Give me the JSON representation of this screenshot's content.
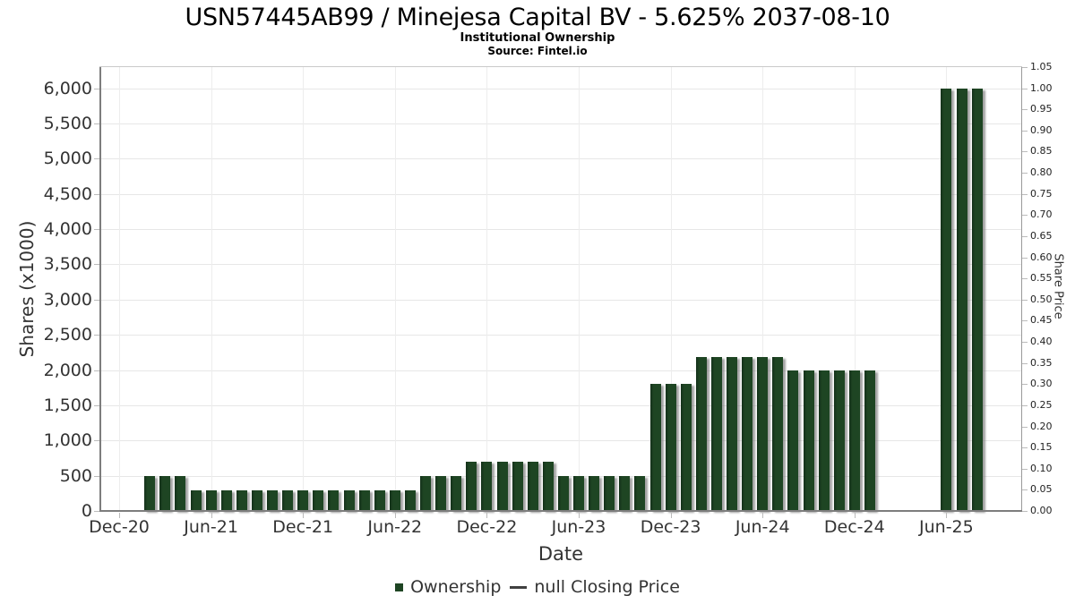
{
  "header": {
    "title": "USN57445AB99 / Minejesa Capital BV - 5.625% 2037-08-10",
    "subtitle": "Institutional Ownership",
    "source": "Source: Fintel.io"
  },
  "chart_data": {
    "type": "bar",
    "title": "USN57445AB99 / Minejesa Capital BV - 5.625% 2037-08-10",
    "subtitle": "Institutional Ownership",
    "source": "Source: Fintel.io",
    "xlabel": "Date",
    "ylabel_left": "Shares (x1000)",
    "ylabel_right": "Share Price",
    "grid": true,
    "legend_position": "bottom",
    "x_major_ticks": [
      "Dec-20",
      "Jun-21",
      "Dec-21",
      "Jun-22",
      "Dec-22",
      "Jun-23",
      "Dec-23",
      "Jun-24",
      "Dec-24",
      "Jun-25"
    ],
    "yticks_left": [
      0,
      500,
      1000,
      1500,
      2000,
      2500,
      3000,
      3500,
      4000,
      4500,
      5000,
      5500,
      6000
    ],
    "ylim_left": [
      0,
      6300
    ],
    "yticks_right": [
      0.0,
      0.05,
      0.1,
      0.15,
      0.2,
      0.25,
      0.3,
      0.35,
      0.4,
      0.45,
      0.5,
      0.55,
      0.6,
      0.65,
      0.7,
      0.75,
      0.8,
      0.85,
      0.9,
      0.95,
      1.0,
      1.05
    ],
    "ylim_right": [
      0,
      1.05
    ],
    "bar_color": "#1e4523",
    "series": [
      {
        "name": "Ownership",
        "type": "bar",
        "units": "shares x1000",
        "points": [
          {
            "date": "Feb-21",
            "shares": 500
          },
          {
            "date": "Mar-21",
            "shares": 500
          },
          {
            "date": "Apr-21",
            "shares": 500
          },
          {
            "date": "May-21",
            "shares": 290
          },
          {
            "date": "Jun-21",
            "shares": 290
          },
          {
            "date": "Jul-21",
            "shares": 290
          },
          {
            "date": "Aug-21",
            "shares": 290
          },
          {
            "date": "Sep-21",
            "shares": 290
          },
          {
            "date": "Oct-21",
            "shares": 290
          },
          {
            "date": "Nov-21",
            "shares": 290
          },
          {
            "date": "Dec-21",
            "shares": 290
          },
          {
            "date": "Jan-22",
            "shares": 290
          },
          {
            "date": "Feb-22",
            "shares": 290
          },
          {
            "date": "Mar-22",
            "shares": 290
          },
          {
            "date": "Apr-22",
            "shares": 290
          },
          {
            "date": "May-22",
            "shares": 290
          },
          {
            "date": "Jun-22",
            "shares": 290
          },
          {
            "date": "Jul-22",
            "shares": 290
          },
          {
            "date": "Aug-22",
            "shares": 500
          },
          {
            "date": "Sep-22",
            "shares": 500
          },
          {
            "date": "Oct-22",
            "shares": 500
          },
          {
            "date": "Nov-22",
            "shares": 700
          },
          {
            "date": "Dec-22",
            "shares": 700
          },
          {
            "date": "Jan-23",
            "shares": 700
          },
          {
            "date": "Feb-23",
            "shares": 700
          },
          {
            "date": "Mar-23",
            "shares": 700
          },
          {
            "date": "Apr-23",
            "shares": 700
          },
          {
            "date": "May-23",
            "shares": 500
          },
          {
            "date": "Jun-23",
            "shares": 500
          },
          {
            "date": "Jul-23",
            "shares": 500
          },
          {
            "date": "Aug-23",
            "shares": 500
          },
          {
            "date": "Sep-23",
            "shares": 500
          },
          {
            "date": "Oct-23",
            "shares": 500
          },
          {
            "date": "Nov-23",
            "shares": 1800
          },
          {
            "date": "Dec-23",
            "shares": 1800
          },
          {
            "date": "Jan-24",
            "shares": 1800
          },
          {
            "date": "Feb-24",
            "shares": 2190
          },
          {
            "date": "Mar-24",
            "shares": 2190
          },
          {
            "date": "Apr-24",
            "shares": 2190
          },
          {
            "date": "May-24",
            "shares": 2190
          },
          {
            "date": "Jun-24",
            "shares": 2190
          },
          {
            "date": "Jul-24",
            "shares": 2190
          },
          {
            "date": "Aug-24",
            "shares": 1990
          },
          {
            "date": "Sep-24",
            "shares": 1990
          },
          {
            "date": "Oct-24",
            "shares": 1990
          },
          {
            "date": "Nov-24",
            "shares": 1990
          },
          {
            "date": "Dec-24",
            "shares": 1990
          },
          {
            "date": "Jan-25",
            "shares": 1990
          },
          {
            "date": "Jun-25",
            "shares": 5990
          },
          {
            "date": "Jul-25",
            "shares": 5990
          },
          {
            "date": "Aug-25",
            "shares": 5990
          }
        ]
      },
      {
        "name": "null Closing Price",
        "type": "line",
        "points": []
      }
    ],
    "legend": [
      {
        "label": "Ownership",
        "marker": "square",
        "color": "#1e4523"
      },
      {
        "label": "null Closing Price",
        "marker": "line",
        "color": "#404040"
      }
    ]
  }
}
